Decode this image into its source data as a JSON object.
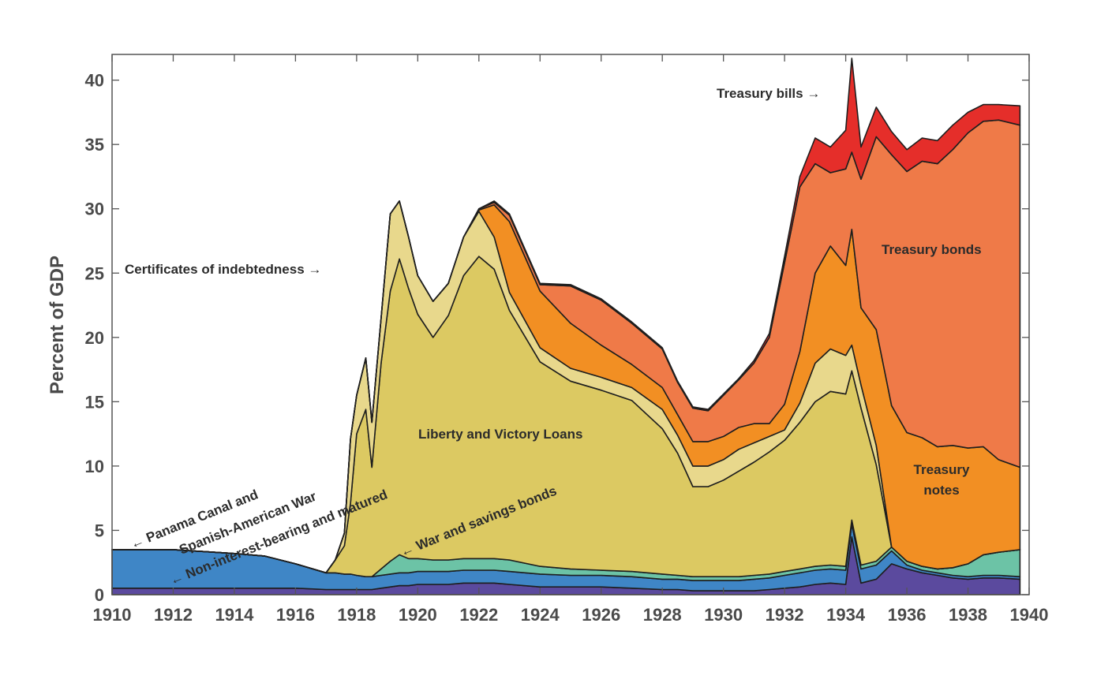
{
  "chart_data": {
    "type": "area",
    "title": "",
    "xlabel": "",
    "ylabel": "Percent of GDP",
    "xlim": [
      1910,
      1940
    ],
    "ylim": [
      0,
      42
    ],
    "xticks": [
      1910,
      1912,
      1914,
      1916,
      1918,
      1920,
      1922,
      1924,
      1926,
      1928,
      1930,
      1932,
      1934,
      1936,
      1938,
      1940
    ],
    "yticks": [
      0,
      5,
      10,
      15,
      20,
      25,
      30,
      35,
      40
    ],
    "x": [
      1910,
      1912,
      1914,
      1915,
      1916,
      1917,
      1917.3,
      1917.6,
      1917.8,
      1918,
      1918.3,
      1918.5,
      1918.8,
      1919.1,
      1919.4,
      1919.7,
      1920,
      1920.5,
      1921,
      1921.5,
      1922,
      1922.5,
      1923,
      1924,
      1925,
      1926,
      1927,
      1928,
      1928.5,
      1929,
      1929.5,
      1930,
      1930.5,
      1931,
      1931.5,
      1932,
      1932.5,
      1933,
      1933.5,
      1934,
      1934.2,
      1934.5,
      1935,
      1935.5,
      1936,
      1936.5,
      1937,
      1937.5,
      1938,
      1938.5,
      1939,
      1939.7
    ],
    "series": [
      {
        "name": "Non-interest-bearing and matured",
        "color": "#5b4a9e",
        "values": [
          0.5,
          0.5,
          0.5,
          0.5,
          0.5,
          0.4,
          0.4,
          0.4,
          0.4,
          0.4,
          0.4,
          0.4,
          0.5,
          0.6,
          0.7,
          0.7,
          0.8,
          0.8,
          0.8,
          0.9,
          0.9,
          0.9,
          0.8,
          0.6,
          0.6,
          0.6,
          0.5,
          0.4,
          0.4,
          0.3,
          0.3,
          0.3,
          0.3,
          0.3,
          0.4,
          0.5,
          0.6,
          0.8,
          0.9,
          0.8,
          4.5,
          0.9,
          1.2,
          2.4,
          2.0,
          1.7,
          1.5,
          1.3,
          1.2,
          1.3,
          1.3,
          1.2
        ]
      },
      {
        "name": "Panama Canal and Spanish-American War",
        "color": "#3f86c6",
        "values": [
          3.0,
          3.0,
          2.7,
          2.5,
          1.9,
          1.3,
          1.3,
          1.2,
          1.2,
          1.1,
          1.0,
          1.0,
          1.0,
          1.0,
          1.0,
          1.0,
          1.0,
          1.0,
          1.0,
          1.0,
          1.0,
          1.0,
          1.0,
          1.0,
          0.9,
          0.9,
          0.9,
          0.8,
          0.8,
          0.8,
          0.8,
          0.8,
          0.8,
          0.9,
          0.9,
          1.0,
          1.1,
          1.1,
          1.1,
          1.1,
          1.0,
          1.1,
          1.1,
          1.0,
          0.3,
          0.2,
          0.2,
          0.2,
          0.2,
          0.2,
          0.2,
          0.2
        ]
      },
      {
        "name": "War and savings bonds",
        "color": "#6cc3a6",
        "values": [
          0,
          0,
          0,
          0,
          0,
          0,
          0,
          0,
          0,
          0,
          0,
          0,
          0.5,
          1.0,
          1.4,
          1.1,
          1.0,
          0.9,
          0.9,
          0.9,
          0.9,
          0.9,
          0.9,
          0.6,
          0.5,
          0.4,
          0.4,
          0.4,
          0.3,
          0.3,
          0.3,
          0.3,
          0.3,
          0.3,
          0.3,
          0.3,
          0.3,
          0.3,
          0.3,
          0.3,
          0.3,
          0.3,
          0.3,
          0.3,
          0.3,
          0.3,
          0.3,
          0.6,
          1.0,
          1.6,
          1.8,
          2.1
        ]
      },
      {
        "name": "Liberty and Victory Loans",
        "color": "#dcc962",
        "values": [
          0,
          0,
          0,
          0,
          0,
          0,
          1.0,
          2.2,
          5.5,
          11.0,
          13.0,
          8.5,
          16.0,
          21.0,
          23.0,
          21.0,
          19.0,
          17.3,
          19.0,
          22.0,
          23.5,
          22.5,
          19.4,
          15.9,
          14.6,
          14.0,
          13.3,
          11.3,
          9.5,
          7.0,
          7.0,
          7.5,
          8.2,
          8.8,
          9.5,
          10.2,
          11.4,
          12.8,
          13.5,
          13.4,
          11.6,
          12.2,
          7.5,
          0,
          0,
          0,
          0,
          0,
          0,
          0,
          0,
          0
        ]
      },
      {
        "name": "Certificates of indebtedness",
        "color": "#e8d88c",
        "values": [
          0,
          0,
          0,
          0,
          0,
          0,
          0,
          1.0,
          5.0,
          3.0,
          4.0,
          3.5,
          3.5,
          6.0,
          4.5,
          4.0,
          3.0,
          2.8,
          2.5,
          3.0,
          3.5,
          2.5,
          1.4,
          1.1,
          1.0,
          1.0,
          1.0,
          1.5,
          1.4,
          1.6,
          1.6,
          1.6,
          1.7,
          1.5,
          1.2,
          0.8,
          1.5,
          3.0,
          3.3,
          3.0,
          2.0,
          1.8,
          1.5,
          0,
          0,
          0,
          0,
          0,
          0,
          0,
          0,
          0
        ]
      },
      {
        "name": "Treasury notes",
        "color": "#f28f23",
        "values": [
          0,
          0,
          0,
          0,
          0,
          0,
          0,
          0,
          0,
          0,
          0,
          0,
          0,
          0,
          0,
          0,
          0,
          0,
          0,
          0,
          0.1,
          2.5,
          5.5,
          4.4,
          3.5,
          2.5,
          1.8,
          1.7,
          1.6,
          1.9,
          1.9,
          1.8,
          1.7,
          1.5,
          1.0,
          2.0,
          4.0,
          7.0,
          8.0,
          7.0,
          9.0,
          6.0,
          9.0,
          11.0,
          10.0,
          10.0,
          9.5,
          9.5,
          9.0,
          8.4,
          7.2,
          6.4
        ]
      },
      {
        "name": "Treasury bonds",
        "color": "#ef7a48",
        "values": [
          0,
          0,
          0,
          0,
          0,
          0,
          0,
          0,
          0,
          0,
          0,
          0,
          0,
          0,
          0,
          0,
          0,
          0,
          0,
          0,
          0.1,
          0.2,
          0.5,
          0.5,
          2.9,
          3.5,
          3.2,
          3.0,
          2.5,
          2.6,
          2.4,
          3.2,
          3.7,
          4.7,
          6.7,
          11.0,
          12.8,
          8.5,
          5.7,
          7.5,
          6.0,
          10.0,
          15.0,
          19.5,
          20.3,
          21.5,
          22.0,
          23.0,
          24.5,
          25.3,
          26.4,
          26.6
        ]
      },
      {
        "name": "Treasury bills",
        "color": "#e52e2a",
        "values": [
          0,
          0,
          0,
          0,
          0,
          0,
          0,
          0,
          0,
          0,
          0,
          0,
          0,
          0,
          0,
          0,
          0,
          0,
          0,
          0,
          0,
          0.1,
          0.1,
          0.1,
          0.1,
          0.1,
          0.1,
          0.1,
          0.1,
          0.1,
          0.1,
          0.1,
          0.1,
          0.2,
          0.3,
          0.5,
          0.8,
          2.0,
          2.0,
          3.0,
          7.3,
          2.5,
          2.3,
          1.8,
          1.7,
          1.8,
          1.8,
          1.9,
          1.6,
          1.3,
          1.2,
          1.5
        ]
      }
    ],
    "annotations": [
      {
        "id": "treasury-bills",
        "text": "Treasury bills →"
      },
      {
        "id": "certificates",
        "text": "Certificates of indebtedness →"
      },
      {
        "id": "treasury-bonds",
        "text": "Treasury bonds"
      },
      {
        "id": "liberty",
        "text": "Liberty and Victory Loans"
      },
      {
        "id": "treasury-notes-1",
        "text": "Treasury"
      },
      {
        "id": "treasury-notes-2",
        "text": "notes"
      },
      {
        "id": "panama-1",
        "text": "← Panama Canal and"
      },
      {
        "id": "panama-2",
        "text": "Spanish-American War"
      },
      {
        "id": "non-interest",
        "text": "← Non-interest-bearing and matured"
      },
      {
        "id": "war-savings",
        "text": "← War and savings bonds"
      }
    ]
  }
}
